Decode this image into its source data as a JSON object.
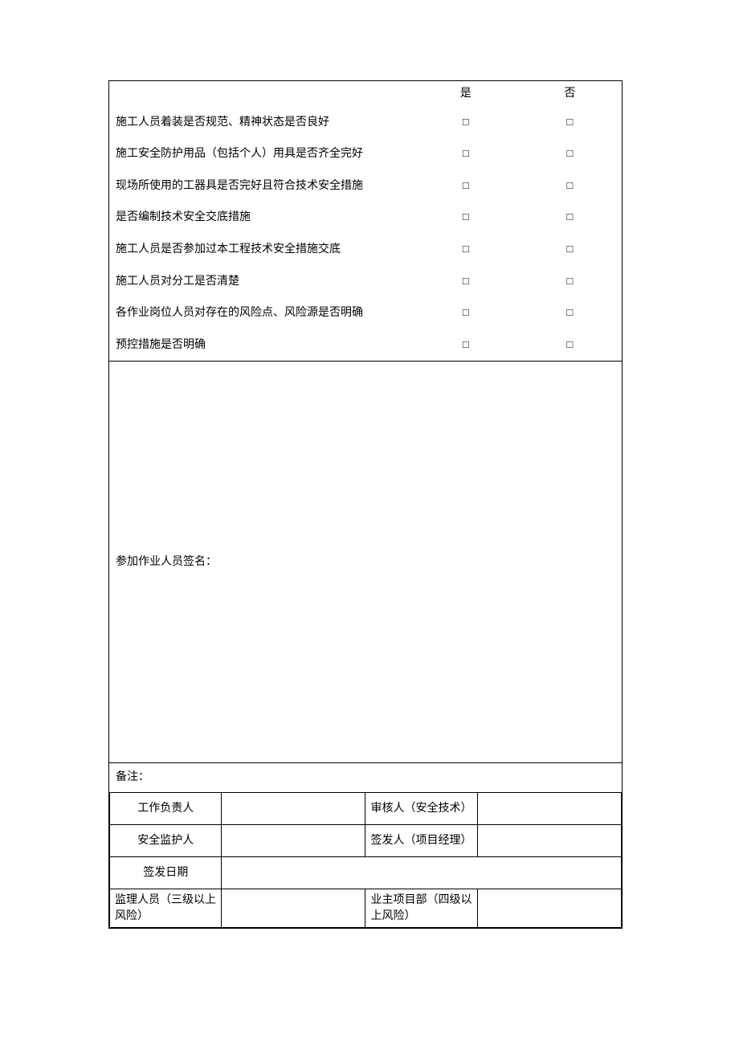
{
  "colors": {
    "background": "#ffffff",
    "border": "#000000",
    "text": "#000000"
  },
  "typography": {
    "font_family": "SimSun",
    "base_fontsize": 14
  },
  "checklist": {
    "header_yes": "是",
    "header_no": "否",
    "checkbox_symbol": "□",
    "items": [
      "施工人员着装是否规范、精神状态是否良好",
      "施工安全防护用品（包括个人）用具是否齐全完好",
      "现场所使用的工器具是否完好且符合技术安全措施",
      "是否编制技术安全交底措施",
      "施工人员是否参加过本工程技术安全措施交底",
      "施工人员对分工是否清楚",
      "各作业岗位人员对存在的风险点、风险源是否明确",
      "预控措施是否明确"
    ]
  },
  "signature_section": {
    "label": "参加作业人员签名："
  },
  "notes_section": {
    "label": "备注："
  },
  "signoff": {
    "rows": [
      {
        "left_label": "工作负责人",
        "left_value": "",
        "right_label": "审核人（安全技术）",
        "right_value": "",
        "left_align": "center"
      },
      {
        "left_label": "安全监护人",
        "left_value": "",
        "right_label": "签发人（项目经理）",
        "right_value": "",
        "left_align": "center"
      },
      {
        "left_label": "签发日期",
        "left_value": "",
        "right_label": "",
        "right_value": "",
        "left_align": "center",
        "merged": true
      },
      {
        "left_label": "监理人员（三级以上风险）",
        "left_value": "",
        "right_label": "业主项目部（四级以上风险）",
        "right_value": "",
        "left_align": "left"
      }
    ]
  }
}
